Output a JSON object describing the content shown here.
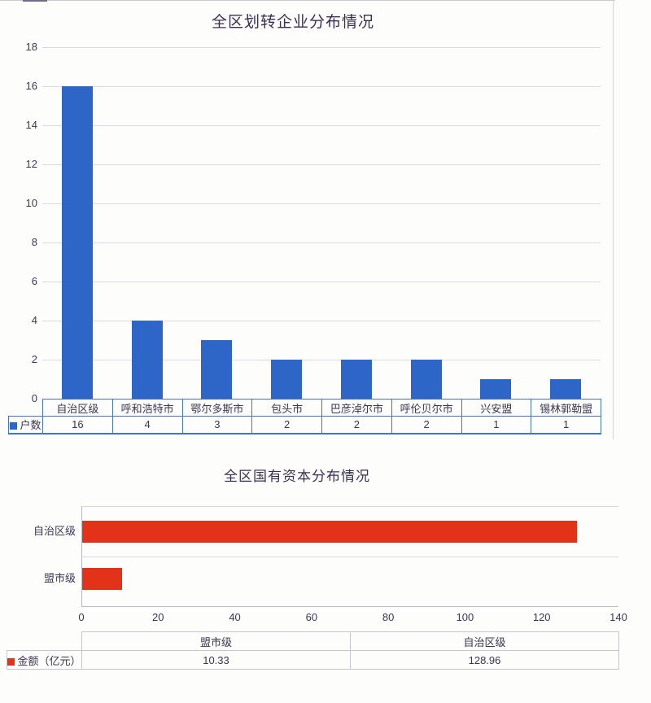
{
  "page": {
    "background": "#fdfdfb",
    "accent_blue": "#2e66c8",
    "accent_red": "#e2331a",
    "ink": "#3d3557"
  },
  "chart_data": [
    {
      "type": "bar",
      "orientation": "vertical",
      "title": "全区划转企业分布情况",
      "categories": [
        "自治区级",
        "呼和浩特市",
        "鄂尔多斯市",
        "包头市",
        "巴彦淖尔市",
        "呼伦贝尔市",
        "兴安盟",
        "锡林郭勒盟"
      ],
      "series": [
        {
          "name": "户数",
          "values": [
            16,
            4,
            3,
            2,
            2,
            2,
            1,
            1
          ]
        }
      ],
      "ylim": [
        0,
        18
      ],
      "ytick_step": 2,
      "grid": true,
      "legend_position": "table-row-left",
      "bar_color": "#2e66c8",
      "table_border_color": "#4673c2",
      "table_values_display": [
        "16",
        "4",
        "3",
        "2",
        "2",
        "2",
        "1",
        "1"
      ]
    },
    {
      "type": "bar",
      "orientation": "horizontal",
      "title": "全区国有资本分布情况",
      "categories": [
        "自治区级",
        "盟市级"
      ],
      "series": [
        {
          "name": "金额（亿元）",
          "values": [
            128.96,
            10.33
          ]
        }
      ],
      "xlim": [
        0,
        140
      ],
      "xtick_step": 20,
      "grid": false,
      "legend_position": "table-row-left",
      "bar_color": "#e2331a",
      "table_border_color": "#c6c6cb",
      "table_categories": [
        "盟市级",
        "自治区级"
      ],
      "table_values_display": [
        "10.33",
        "128.96"
      ]
    }
  ]
}
